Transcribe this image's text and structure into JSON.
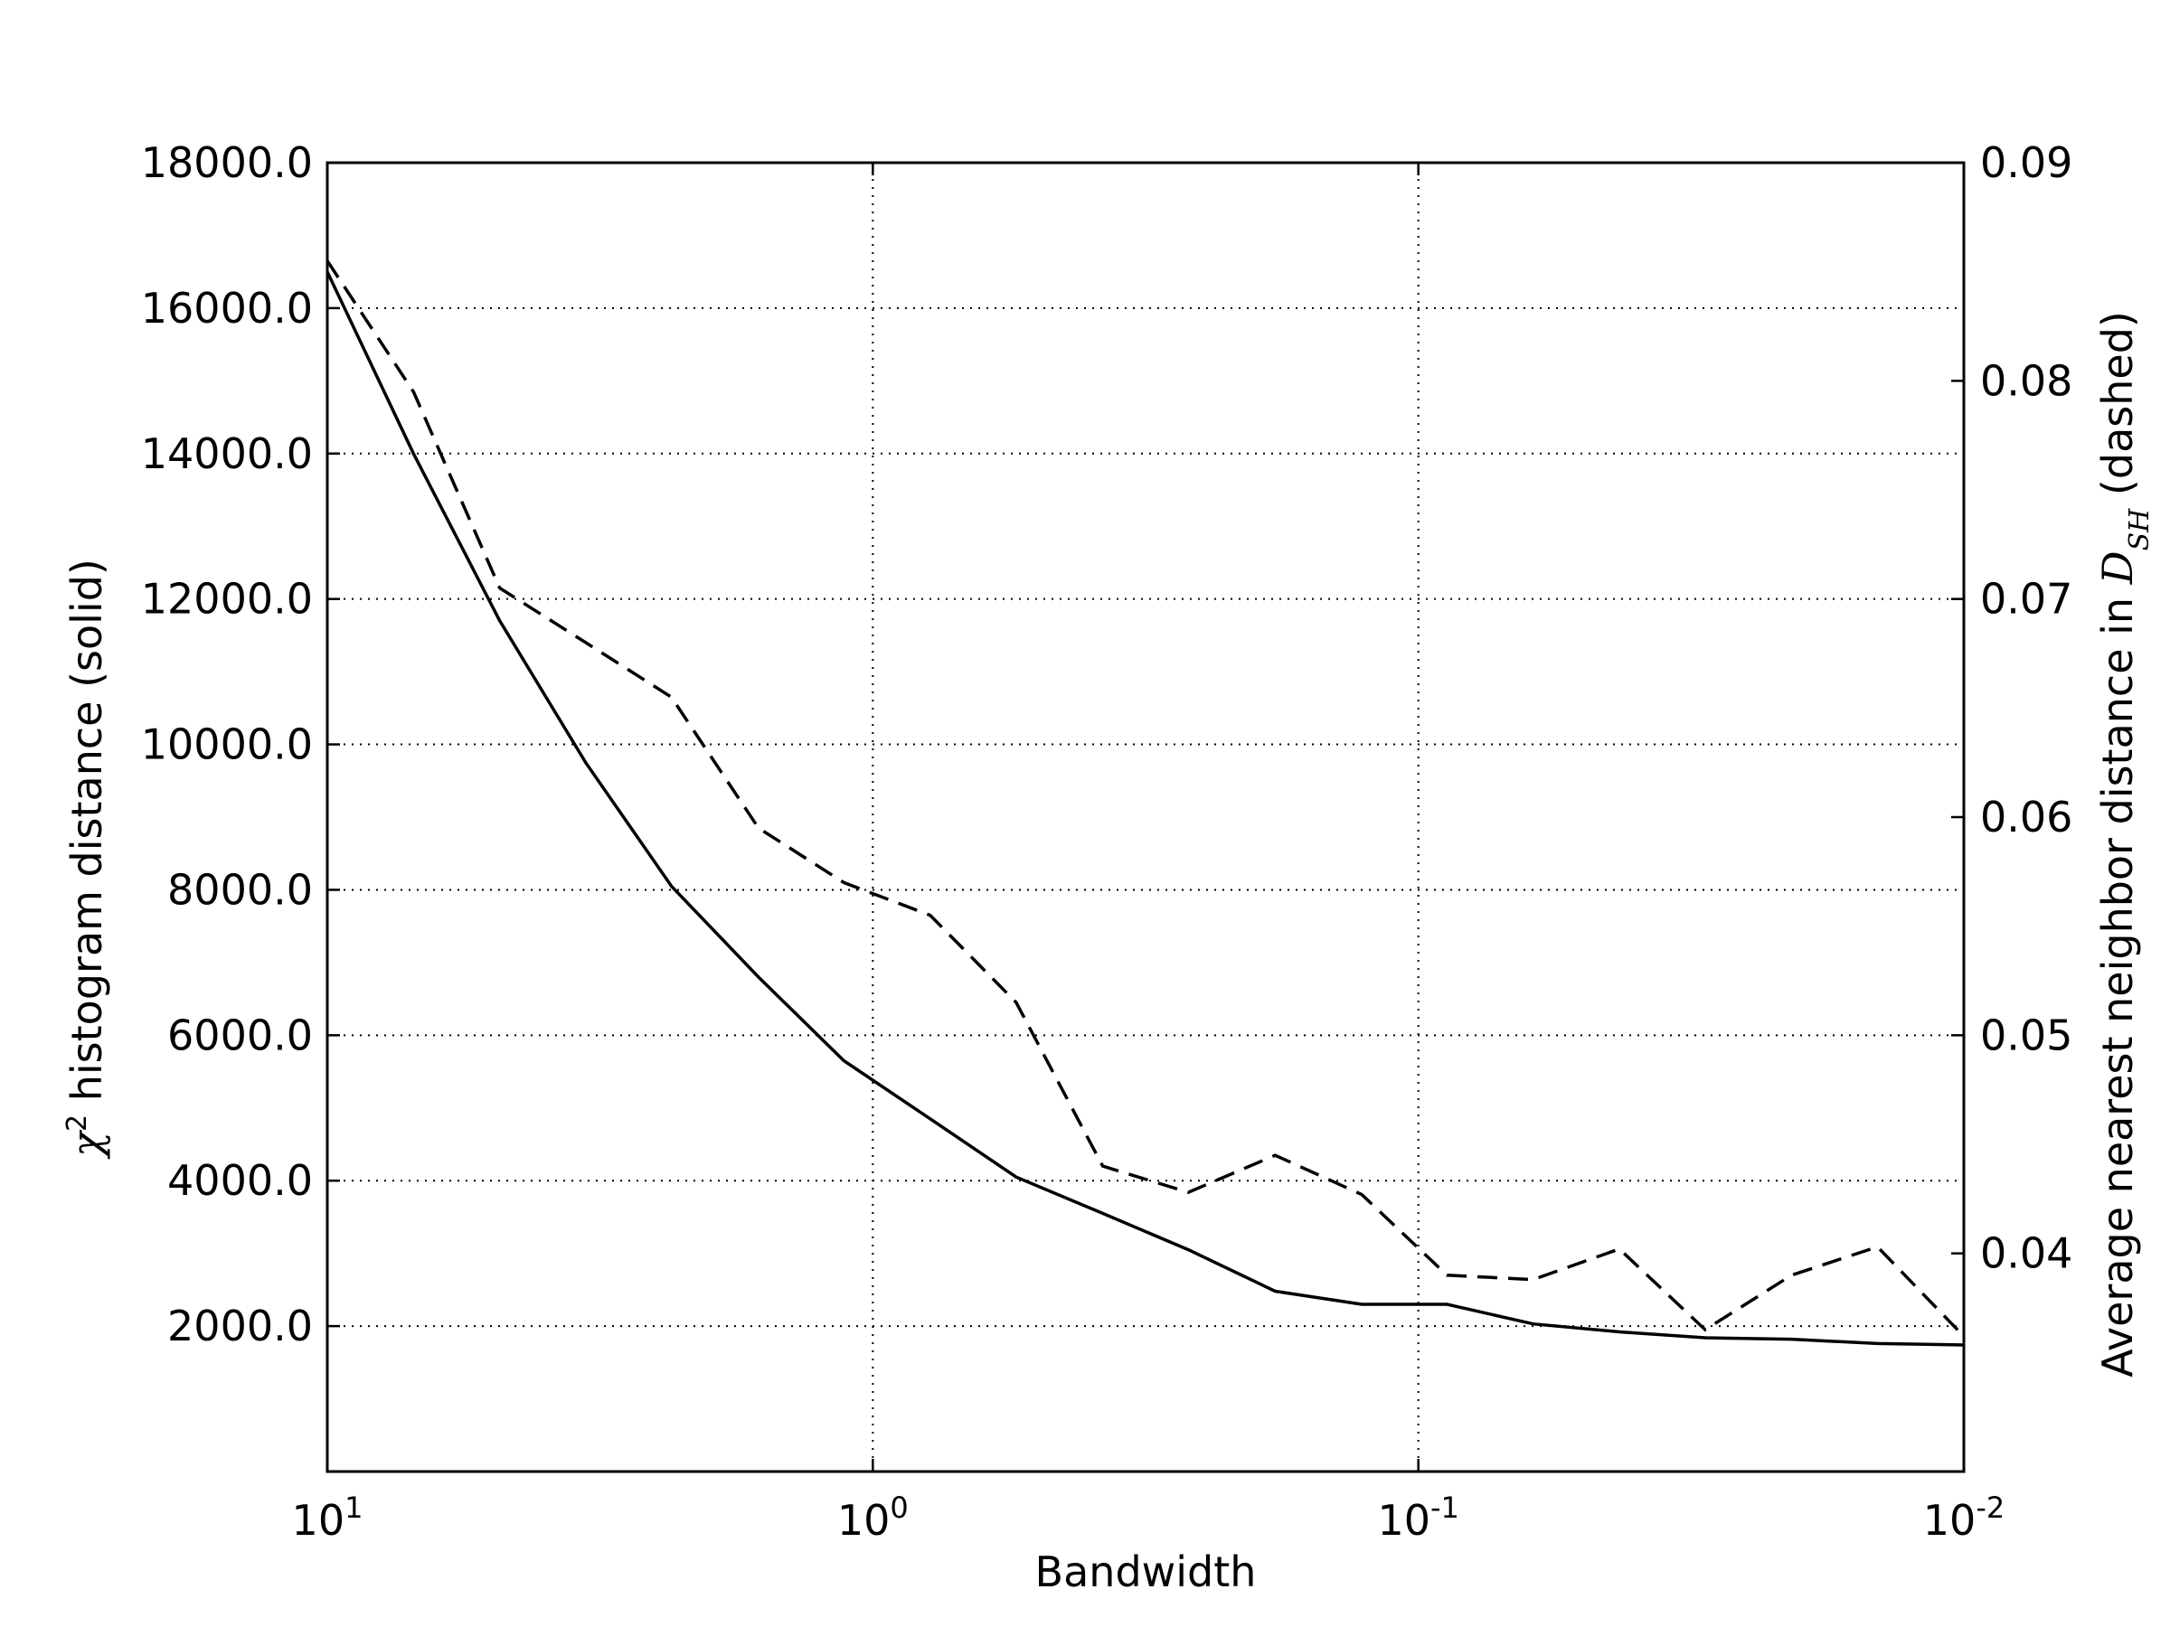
{
  "chart_data": {
    "type": "line",
    "xlabel": "Bandwidth",
    "x_scale": "log",
    "x_reversed": true,
    "xlim": [
      10,
      0.01
    ],
    "x_ticks": [
      {
        "value": 10,
        "base": "10",
        "exp": "1"
      },
      {
        "value": 1,
        "base": "10",
        "exp": "0"
      },
      {
        "value": 0.1,
        "base": "10",
        "exp": "-1"
      },
      {
        "value": 0.01,
        "base": "10",
        "exp": "-2"
      }
    ],
    "y_left": {
      "label_prefix": "χ",
      "label_sup": "2",
      "label_suffix": " histogram distance (solid)",
      "ylim": [
        0,
        18000
      ],
      "ticks": [
        2000,
        4000,
        6000,
        8000,
        10000,
        12000,
        14000,
        16000,
        18000
      ],
      "tick_labels": [
        "2000.0",
        "4000.0",
        "6000.0",
        "8000.0",
        "10000.0",
        "12000.0",
        "14000.0",
        "16000.0",
        "18000.0"
      ]
    },
    "y_right": {
      "label_prefix": "Average nearest neighbor distance in ",
      "label_math": "D",
      "label_sub": "SH",
      "label_suffix": " (dashed)",
      "ylim": [
        0.03,
        0.09
      ],
      "ticks": [
        0.04,
        0.05,
        0.06,
        0.07,
        0.08,
        0.09
      ],
      "tick_labels": [
        "0.04",
        "0.05",
        "0.06",
        "0.07",
        "0.08",
        "0.09"
      ]
    },
    "grid": true,
    "series": [
      {
        "axis": "left",
        "style": "solid",
        "x": [
          10,
          6.95,
          4.83,
          3.36,
          2.34,
          1.62,
          1.13,
          0.785,
          0.546,
          0.379,
          0.264,
          0.183,
          0.127,
          0.0886,
          0.0616,
          0.0428,
          0.0298,
          0.0207,
          0.0144,
          0.01
        ],
        "y": [
          16500,
          14000,
          11700,
          9750,
          8050,
          6800,
          5650,
          4850,
          4050,
          3550,
          3050,
          2480,
          2300,
          2300,
          2030,
          1920,
          1840,
          1820,
          1760,
          1740
        ]
      },
      {
        "axis": "right",
        "style": "dashed",
        "x": [
          10,
          6.95,
          4.83,
          3.36,
          2.34,
          1.62,
          1.13,
          0.785,
          0.546,
          0.379,
          0.264,
          0.183,
          0.127,
          0.0886,
          0.0616,
          0.0428,
          0.0298,
          0.0207,
          0.0144,
          0.01
        ],
        "y": [
          0.0855,
          0.0795,
          0.0705,
          0.068,
          0.0655,
          0.0595,
          0.057,
          0.0555,
          0.0515,
          0.044,
          0.0428,
          0.0445,
          0.0427,
          0.039,
          0.0388,
          0.0402,
          0.0365,
          0.039,
          0.0403,
          0.0362
        ]
      }
    ]
  }
}
